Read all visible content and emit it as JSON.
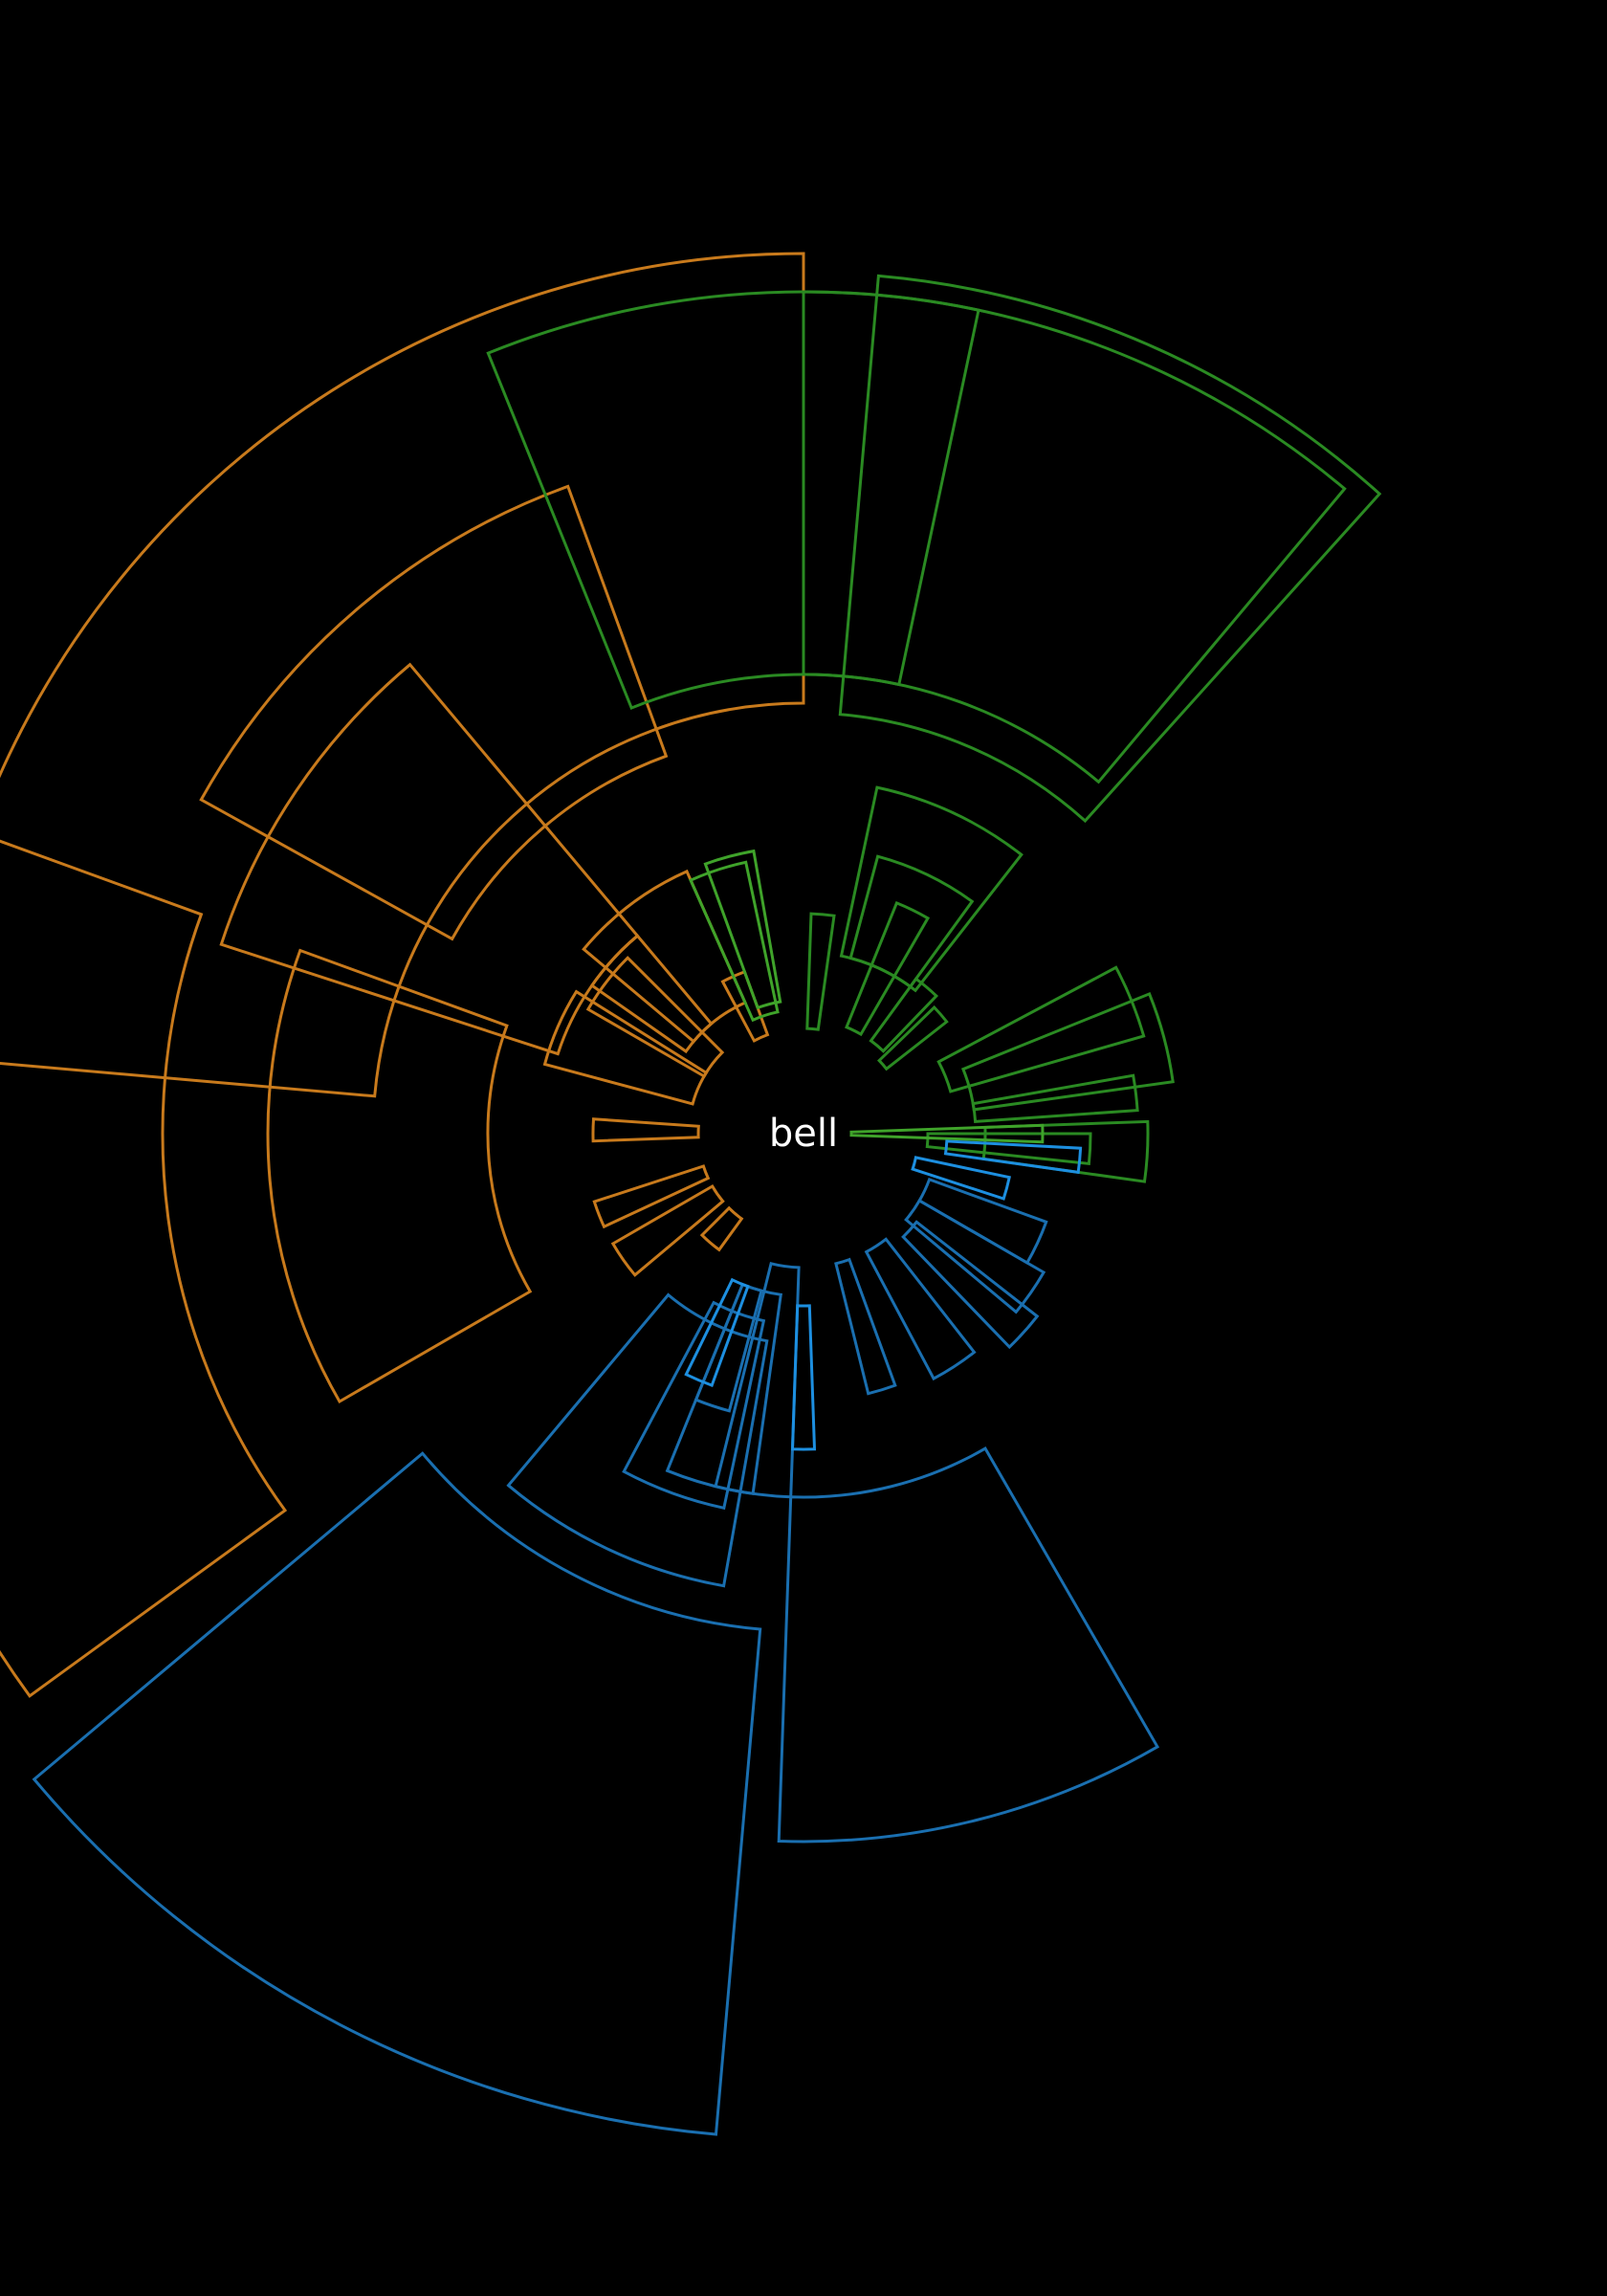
{
  "center_label": "bell",
  "colors": {
    "background": "#000000",
    "label": "#ffffff",
    "orange": "#c87a1c",
    "green": "#2a8a22",
    "green_bright": "#3fa32a",
    "blue": "#1a6fb0",
    "blue_bright": "#1d8fe0"
  },
  "groups": [
    {
      "name": "orange-group",
      "color_key": "orange",
      "angle_range_deg": [
        180,
        270
      ]
    },
    {
      "name": "green-group",
      "color_key": "green",
      "angle_range_deg": [
        270,
        360
      ]
    },
    {
      "name": "blue-group",
      "color_key": "blue",
      "angle_range_deg": [
        90,
        180
      ]
    }
  ]
}
